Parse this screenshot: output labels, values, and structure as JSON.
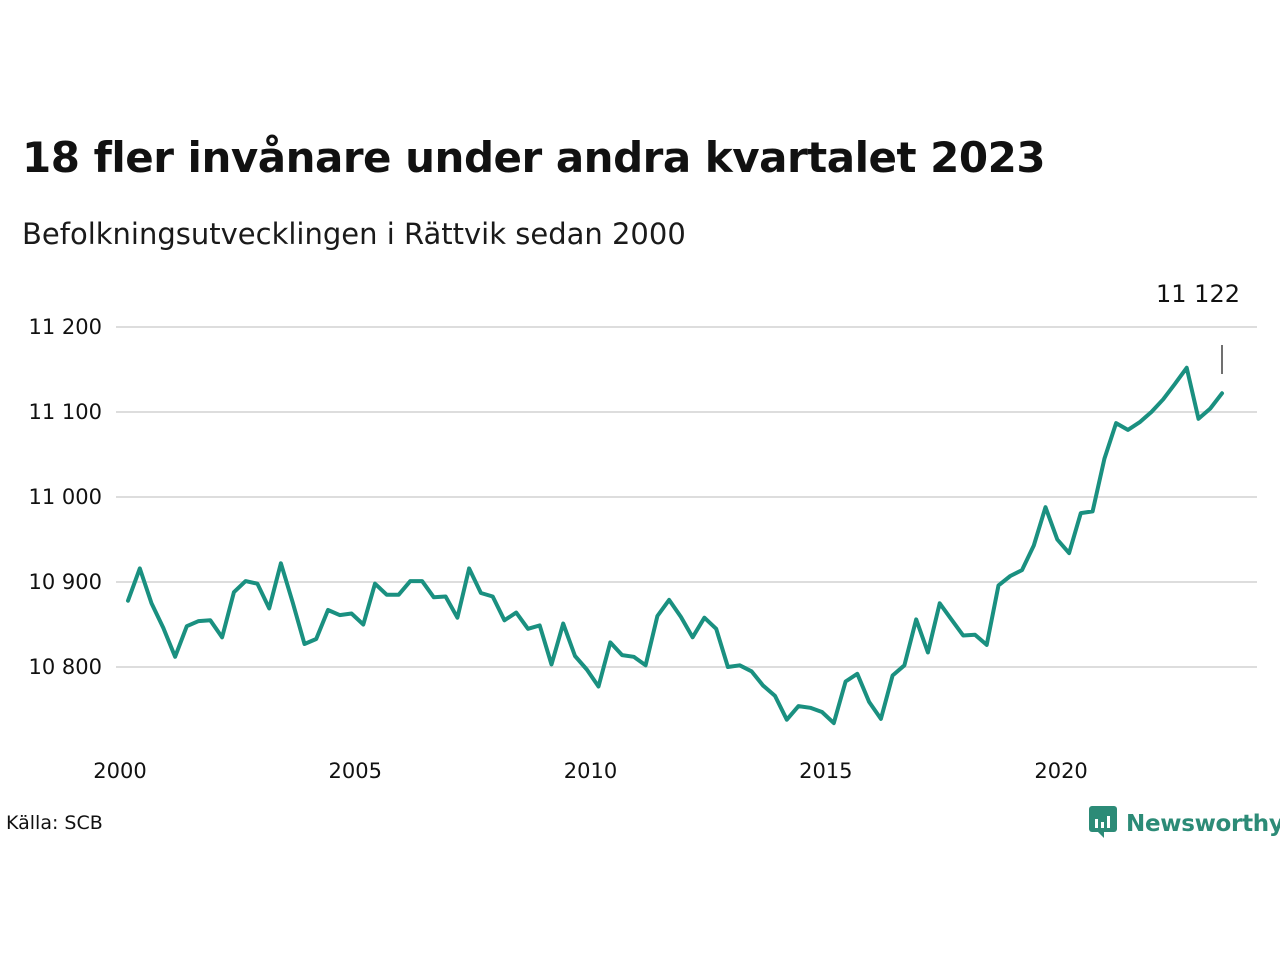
{
  "title": "18 fler invånare under andra kvartalet 2023",
  "subtitle": "Befolkningsutvecklingen i Rättvik sedan 2000",
  "source": "Källa: SCB",
  "brand": {
    "name": "Newsworthy",
    "icon": "newsworthy-logo-icon",
    "color": "#2c8b77"
  },
  "colors": {
    "line": "#1a9080",
    "grid": "#dddddd",
    "annotation": "#111111"
  },
  "chart_data": {
    "type": "line",
    "title": "18 fler invånare under andra kvartalet 2023",
    "subtitle": "Befolkningsutvecklingen i Rättvik sedan 2000",
    "xlabel": "",
    "ylabel": "",
    "x_ticks": [
      "2000",
      "2005",
      "2010",
      "2015",
      "2020"
    ],
    "y_ticks": [
      "10 800",
      "10 900",
      "11 000",
      "11 100",
      "11 200"
    ],
    "y_tick_values": [
      10800,
      10900,
      11000,
      11100,
      11200
    ],
    "x_tick_values": [
      2000,
      2005,
      2010,
      2015,
      2020
    ],
    "xlim": [
      2000,
      2023.5
    ],
    "ylim": [
      10740,
      11200
    ],
    "grid": true,
    "legend": "none",
    "annotation": {
      "text": "11 122",
      "x": 2023.25,
      "y": 11122
    },
    "series": [
      {
        "x": [
          2000.0,
          2000.25,
          2000.5,
          2000.75,
          2001.0,
          2001.25,
          2001.5,
          2001.75,
          2002.0,
          2002.25,
          2002.5,
          2002.75,
          2003.0,
          2003.25,
          2003.5,
          2003.75,
          2004.0,
          2004.25,
          2004.5,
          2004.75,
          2005.0,
          2005.25,
          2005.5,
          2005.75,
          2006.0,
          2006.25,
          2006.5,
          2006.75,
          2007.0,
          2007.25,
          2007.5,
          2007.75,
          2008.0,
          2008.25,
          2008.5,
          2008.75,
          2009.0,
          2009.25,
          2009.5,
          2009.75,
          2010.0,
          2010.25,
          2010.5,
          2010.75,
          2011.0,
          2011.25,
          2011.5,
          2011.75,
          2012.0,
          2012.25,
          2012.5,
          2012.75,
          2013.0,
          2013.25,
          2013.5,
          2013.75,
          2014.0,
          2014.25,
          2014.5,
          2014.75,
          2015.0,
          2015.25,
          2015.5,
          2015.75,
          2016.0,
          2016.25,
          2016.5,
          2016.75,
          2017.0,
          2017.25,
          2017.5,
          2017.75,
          2018.0,
          2018.25,
          2018.5,
          2018.75,
          2019.0,
          2019.25,
          2019.5,
          2019.75,
          2020.0,
          2020.25,
          2020.5,
          2020.75,
          2021.0,
          2021.25,
          2021.5,
          2021.75,
          2022.0,
          2022.25,
          2022.5,
          2022.75,
          2023.0,
          2023.25
        ],
        "values": [
          10878,
          10916,
          10875,
          10846,
          10812,
          10848,
          10854,
          10855,
          10835,
          10888,
          10901,
          10898,
          10869,
          10922,
          10876,
          10827,
          10833,
          10867,
          10861,
          10863,
          10850,
          10898,
          10885,
          10885,
          10901,
          10901,
          10882,
          10883,
          10858,
          10916,
          10887,
          10883,
          10855,
          10864,
          10845,
          10849,
          10803,
          10851,
          10813,
          10797,
          10777,
          10829,
          10814,
          10812,
          10802,
          10860,
          10879,
          10859,
          10835,
          10858,
          10845,
          10800,
          10802,
          10795,
          10778,
          10766,
          10738,
          10754,
          10752,
          10747,
          10734,
          10783,
          10792,
          10759,
          10739,
          10790,
          10802,
          10856,
          10817,
          10875,
          10856,
          10837,
          10838,
          10826,
          10896,
          10907,
          10914,
          10943,
          10988,
          10950,
          10934,
          10981,
          10983,
          11045,
          11087,
          11079,
          11088,
          11100,
          11115,
          11133,
          11152,
          11092,
          11104,
          11122
        ]
      }
    ]
  }
}
